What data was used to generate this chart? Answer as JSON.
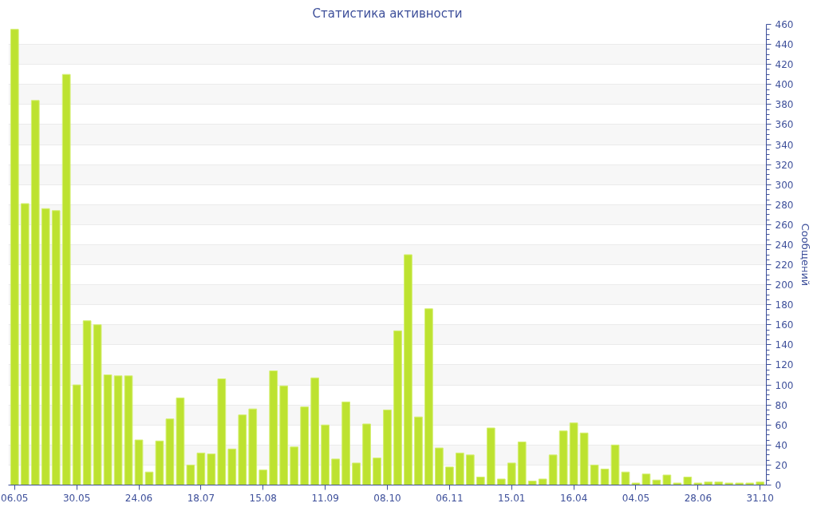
{
  "chart_data": {
    "type": "bar",
    "title": "Статистика активности",
    "ylabel": "Сообщений",
    "categories": [
      "06.05",
      null,
      null,
      null,
      null,
      null,
      "30.05",
      null,
      null,
      null,
      null,
      null,
      "24.06",
      null,
      null,
      null,
      null,
      null,
      "18.07",
      null,
      null,
      null,
      null,
      null,
      "15.08",
      null,
      null,
      null,
      null,
      null,
      "11.09",
      null,
      null,
      null,
      null,
      null,
      "08.10",
      null,
      null,
      null,
      null,
      null,
      "06.11",
      null,
      null,
      null,
      null,
      null,
      "15.01",
      null,
      null,
      null,
      null,
      null,
      "16.04",
      null,
      null,
      null,
      null,
      null,
      "04.05",
      null,
      null,
      null,
      null,
      null,
      "28.06",
      null,
      null,
      null,
      null,
      null,
      "31.10"
    ],
    "values": [
      455,
      281,
      384,
      276,
      274,
      410,
      100,
      164,
      160,
      110,
      109,
      109,
      45,
      13,
      44,
      66,
      87,
      20,
      32,
      31,
      106,
      36,
      70,
      76,
      15,
      114,
      99,
      38,
      78,
      107,
      60,
      26,
      83,
      22,
      61,
      27,
      75,
      154,
      230,
      68,
      176,
      37,
      18,
      32,
      30,
      8,
      57,
      6,
      22,
      43,
      4,
      6,
      30,
      54,
      62,
      52,
      20,
      16,
      40,
      13,
      2,
      11,
      5,
      10,
      2,
      8,
      2,
      3,
      3,
      2,
      2,
      2,
      3
    ],
    "color": "#bde230",
    "ylim": [
      0,
      460
    ],
    "yticks": [
      0,
      20,
      40,
      60,
      80,
      100,
      120,
      140,
      160,
      180,
      200,
      220,
      240,
      260,
      280,
      300,
      320,
      340,
      360,
      380,
      400,
      420,
      440,
      460
    ],
    "grid": "y"
  }
}
